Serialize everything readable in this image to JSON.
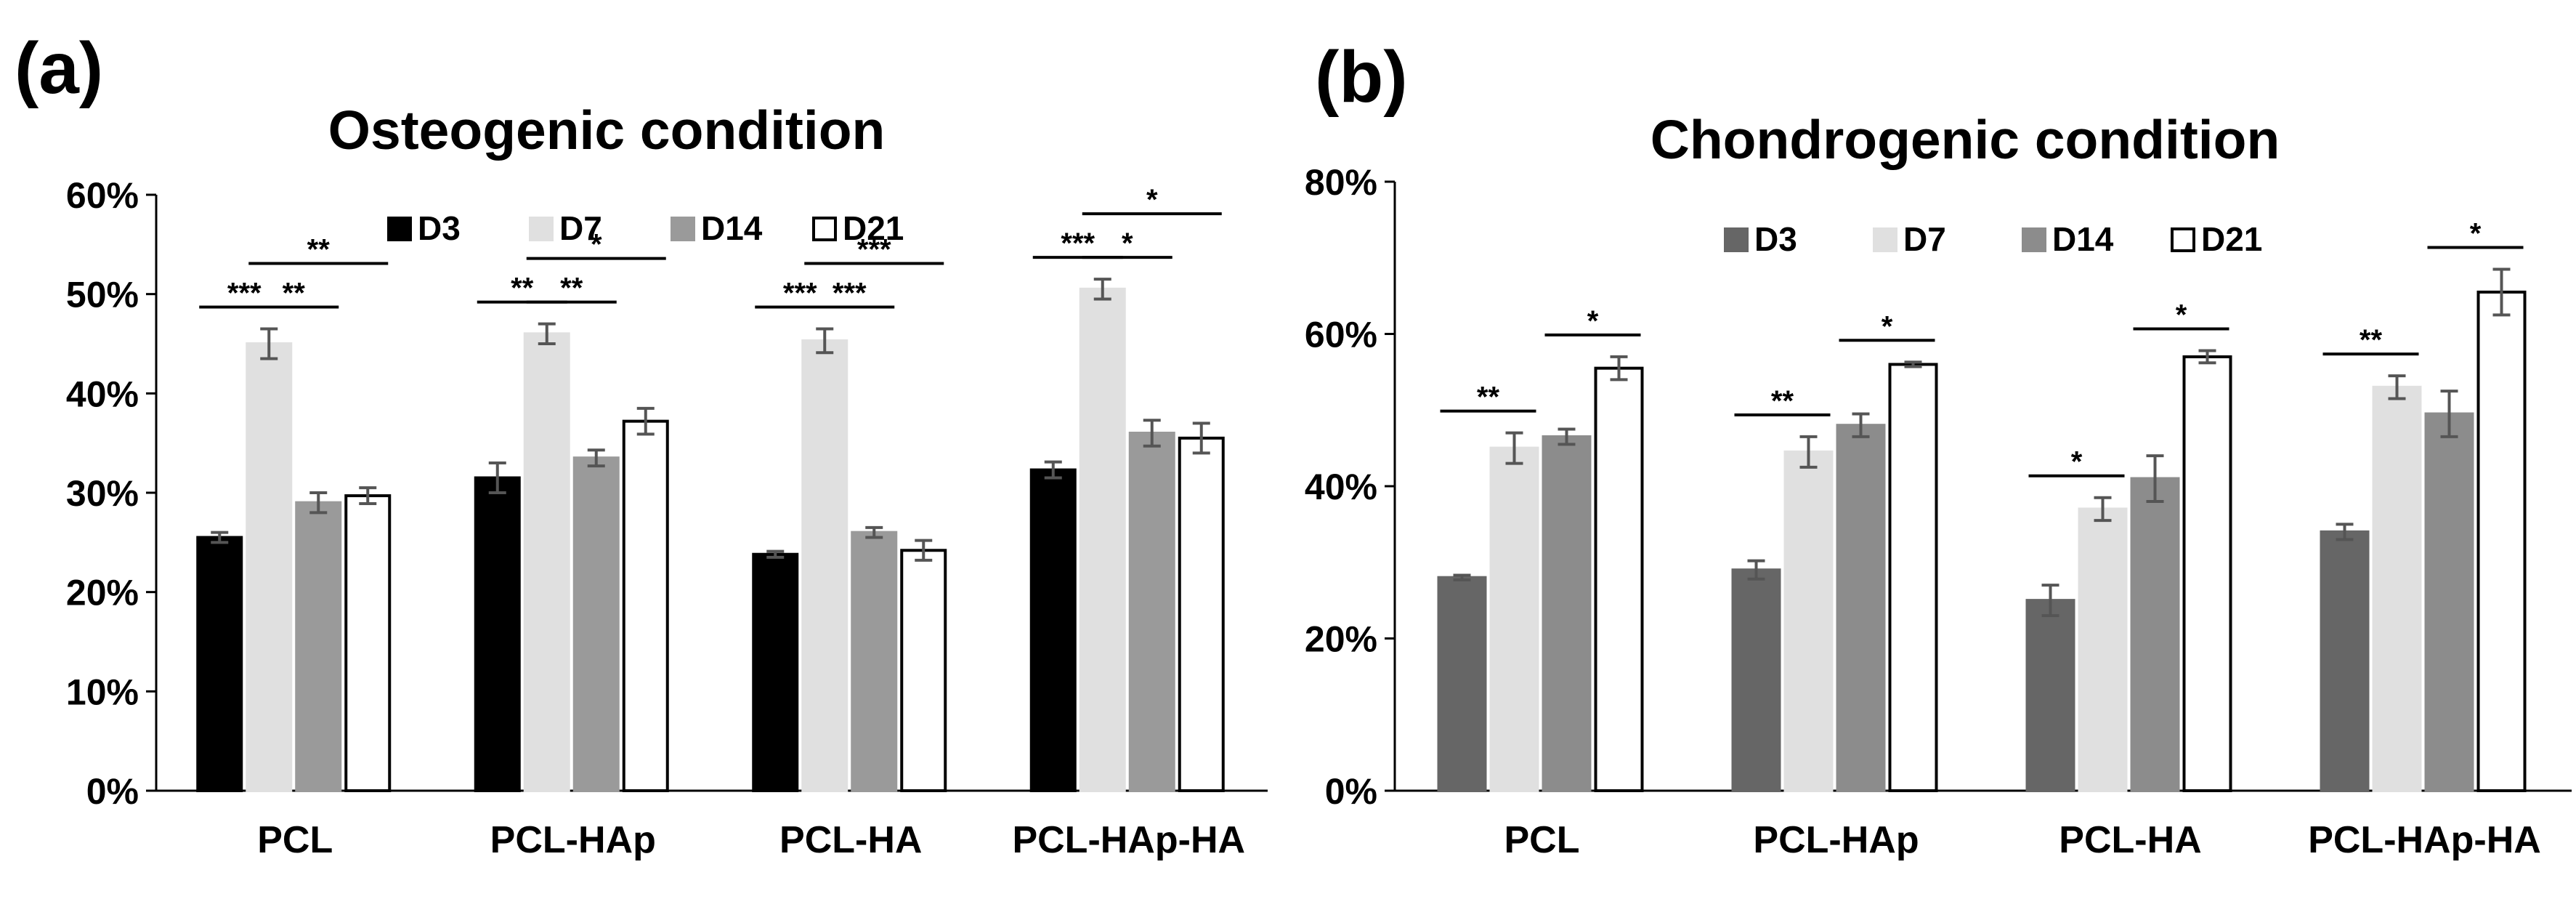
{
  "colors": {
    "osteo": {
      "D3": "#000000",
      "D7": "#e0e0e0",
      "D14": "#9a9a9a",
      "D21": "#ffffff"
    },
    "chondro": {
      "D3": "#666666",
      "D7": "#e0e0e0",
      "D14": "#8c8c8c",
      "D21": "#ffffff"
    },
    "stroke": "#000000",
    "error": "#555555"
  },
  "chart_data": [
    {
      "type": "bar",
      "panel_label": "(a)",
      "title": "Osteogenic condition",
      "categories": [
        "PCL",
        "PCL-HAp",
        "PCL-HA",
        "PCL-HAp-HA"
      ],
      "series": [
        {
          "name": "D3",
          "values": [
            25.5,
            31.5,
            23.8,
            32.3
          ],
          "errors": [
            0.5,
            1.5,
            0.3,
            0.8
          ]
        },
        {
          "name": "D7",
          "values": [
            45.0,
            46.0,
            45.3,
            50.5
          ],
          "errors": [
            1.5,
            1.0,
            1.2,
            1.0
          ]
        },
        {
          "name": "D14",
          "values": [
            29.0,
            33.5,
            26.0,
            36.0
          ],
          "errors": [
            1.0,
            0.8,
            0.5,
            1.3
          ]
        },
        {
          "name": "D21",
          "values": [
            29.7,
            37.2,
            24.2,
            35.5
          ],
          "errors": [
            0.8,
            1.3,
            1.0,
            1.5
          ]
        }
      ],
      "ylim": [
        0,
        60
      ],
      "yticks": [
        0,
        10,
        20,
        30,
        40,
        50,
        60
      ],
      "ytick_labels": [
        "0%",
        "10%",
        "20%",
        "30%",
        "40%",
        "50%",
        "60%"
      ],
      "legend_position": "top-center",
      "significance": [
        {
          "group": 0,
          "from": 0,
          "to": 1,
          "label": "***",
          "level": 0
        },
        {
          "group": 0,
          "from": 1,
          "to": 2,
          "label": "**",
          "level": 0
        },
        {
          "group": 0,
          "from": 1,
          "to": 3,
          "label": "**",
          "level": 1
        },
        {
          "group": 1,
          "from": 0,
          "to": 1,
          "label": "**",
          "level": 0
        },
        {
          "group": 1,
          "from": 1,
          "to": 2,
          "label": "**",
          "level": 0
        },
        {
          "group": 1,
          "from": 1,
          "to": 3,
          "label": "*",
          "level": 1
        },
        {
          "group": 2,
          "from": 0,
          "to": 1,
          "label": "***",
          "level": 0
        },
        {
          "group": 2,
          "from": 1,
          "to": 2,
          "label": "***",
          "level": 0
        },
        {
          "group": 2,
          "from": 1,
          "to": 3,
          "label": "***",
          "level": 1
        },
        {
          "group": 3,
          "from": 0,
          "to": 1,
          "label": "***",
          "level": 0
        },
        {
          "group": 3,
          "from": 1,
          "to": 2,
          "label": "*",
          "level": 0
        },
        {
          "group": 3,
          "from": 1,
          "to": 3,
          "label": "*",
          "level": 1
        }
      ]
    },
    {
      "type": "bar",
      "panel_label": "(b)",
      "title": "Chondrogenic condition",
      "categories": [
        "PCL",
        "PCL-HAp",
        "PCL-HA",
        "PCL-HAp-HA"
      ],
      "series": [
        {
          "name": "D3",
          "values": [
            28.0,
            29.0,
            25.0,
            34.0
          ],
          "errors": [
            0.3,
            1.2,
            2.0,
            1.0
          ]
        },
        {
          "name": "D7",
          "values": [
            45.0,
            44.5,
            37.0,
            53.0
          ],
          "errors": [
            2.0,
            2.0,
            1.5,
            1.5
          ]
        },
        {
          "name": "D14",
          "values": [
            46.5,
            48.0,
            41.0,
            49.5
          ],
          "errors": [
            1.0,
            1.5,
            3.0,
            3.0
          ]
        },
        {
          "name": "D21",
          "values": [
            55.5,
            56.0,
            57.0,
            65.5
          ],
          "errors": [
            1.5,
            0.3,
            0.8,
            3.0
          ]
        }
      ],
      "ylim": [
        0,
        80
      ],
      "yticks": [
        0,
        20,
        40,
        60,
        80
      ],
      "ytick_labels": [
        "0%",
        "20%",
        "40%",
        "60%",
        "80%"
      ],
      "legend_position": "top-center",
      "significance": [
        {
          "group": 0,
          "from": 0,
          "to": 1,
          "label": "**",
          "level": 0
        },
        {
          "group": 0,
          "from": 2,
          "to": 3,
          "label": "*",
          "level": 0
        },
        {
          "group": 1,
          "from": 0,
          "to": 1,
          "label": "**",
          "level": 0
        },
        {
          "group": 1,
          "from": 2,
          "to": 3,
          "label": "*",
          "level": 0
        },
        {
          "group": 2,
          "from": 0,
          "to": 1,
          "label": "*",
          "level": 0
        },
        {
          "group": 2,
          "from": 2,
          "to": 3,
          "label": "*",
          "level": 0
        },
        {
          "group": 3,
          "from": 0,
          "to": 1,
          "label": "**",
          "level": 0
        },
        {
          "group": 3,
          "from": 2,
          "to": 3,
          "label": "*",
          "level": 0
        }
      ]
    }
  ]
}
